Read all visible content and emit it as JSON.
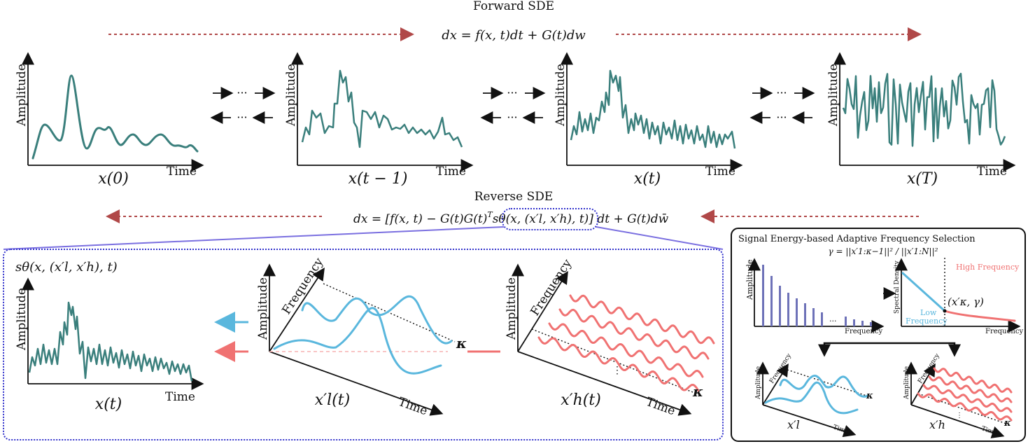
{
  "forward": {
    "title": "Forward SDE",
    "equation": "dx = f(x, t)dt + G(t)dw"
  },
  "reverse": {
    "title": "Reverse SDE",
    "equation_pre": "dx = [f(x, t) − G(t)G(t)",
    "equation_sup": "T",
    "equation_score": "sθ(x, (x′l, x′h), t)",
    "equation_post": "] dt + G(t)dw̄"
  },
  "panels": [
    {
      "caption": "x(0)",
      "ylabel": "Amplitude",
      "xlabel": "Time"
    },
    {
      "caption": "x(t − 1)",
      "ylabel": "Amplitude",
      "xlabel": "Time"
    },
    {
      "caption": "x(t)",
      "ylabel": "Amplitude",
      "xlabel": "Time"
    },
    {
      "caption": "x(T)",
      "ylabel": "Amplitude",
      "xlabel": "Time"
    }
  ],
  "transition_dots": "···",
  "score_box": {
    "title": "sθ(x, (x′l, x′h), t)",
    "panel_caption": "x(t)",
    "ylabel": "Amplitude",
    "xlabel": "Time",
    "low": {
      "caption": "x′l(t)",
      "ylabel": "Amplitude",
      "zlabel": "Frequency",
      "xlabel": "Time",
      "kappa": "κ"
    },
    "high": {
      "caption": "x′h(t)",
      "ylabel": "Amplitude",
      "zlabel": "Frequency",
      "xlabel": "Time",
      "kappa": "κ",
      "vdots": "⋮"
    }
  },
  "selection_box": {
    "title": "Signal Energy-based Adaptive Frequency Selection",
    "gamma_eq": "γ = ||x′1:κ−1||² / ||x′1:N||²",
    "spectrum": {
      "ylabel": "Amplitude",
      "xlabel": "Frequency",
      "dots": "···"
    },
    "density": {
      "ylabel": "Spectral Density",
      "xlabel": "Frequency",
      "high": "High Frequency",
      "low1": "Low",
      "low2": "Frequency",
      "point": "(x′κ, γ)"
    },
    "low_panel": {
      "caption": "x′l",
      "ylabel": "Amplitude",
      "zlabel": "Frequency",
      "xlabel": "Time",
      "kappa": "κ"
    },
    "high_panel": {
      "caption": "x′h",
      "ylabel": "Amplitude",
      "zlabel": "Frequency",
      "xlabel": "Time",
      "kappa": "κ",
      "vdots": "⋮"
    }
  },
  "colors": {
    "signal": "#3a7f7c",
    "low": "#5ab7dd",
    "high": "#f07272",
    "arrow": "#b04848",
    "box": "#3333cc"
  }
}
